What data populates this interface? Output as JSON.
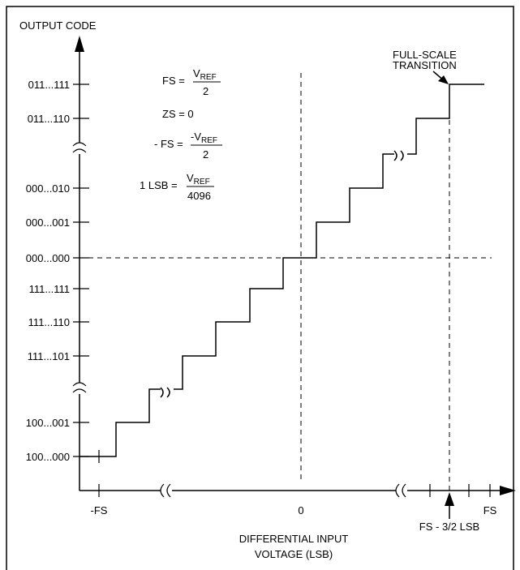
{
  "y_axis": {
    "title": "OUTPUT CODE",
    "codes": [
      "011...111",
      "011...110",
      "000...010",
      "000...001",
      "000...000",
      "111...111",
      "111...110",
      "111...101",
      "100...001",
      "100...000"
    ]
  },
  "equations": [
    {
      "lhs": "FS =",
      "num": "V",
      "num_sub": "REF",
      "den": "2"
    },
    {
      "text": "ZS = 0"
    },
    {
      "lhs": "- FS =",
      "num": "-V",
      "num_sub": "REF",
      "den": "2"
    },
    {
      "lhs": "1 LSB =",
      "num": "V",
      "num_sub": "REF",
      "den": "4096"
    }
  ],
  "annotation": [
    "FULL-SCALE",
    "TRANSITION"
  ],
  "x_axis": {
    "neg_fs": "-FS",
    "zero": "0",
    "fs": "FS",
    "transition": "FS - 3/2 LSB",
    "title": [
      "DIFFERENTIAL INPUT",
      "VOLTAGE (LSB)"
    ]
  }
}
